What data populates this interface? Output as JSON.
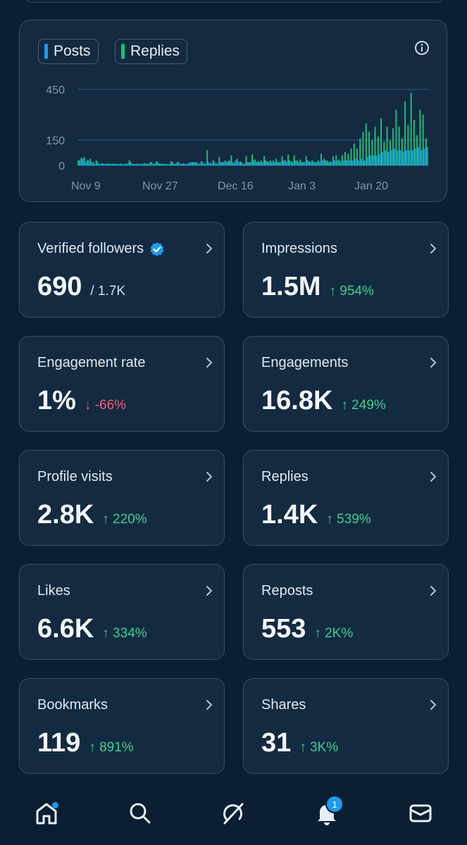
{
  "chart_legend": {
    "posts": {
      "label": "Posts",
      "color": "#1d9bf0"
    },
    "replies": {
      "label": "Replies",
      "color": "#19c37d"
    }
  },
  "chart_data": {
    "type": "bar",
    "x_tick_labels": [
      "Nov 9",
      "Nov 27",
      "Dec 16",
      "Jan 3",
      "Jan 20"
    ],
    "y_tick_labels": [
      "450",
      "150",
      "0"
    ],
    "ylim": [
      0,
      450
    ],
    "grid": true,
    "series": [
      {
        "name": "Posts",
        "values": [
          3,
          4,
          2,
          3,
          2,
          1,
          2,
          1,
          1,
          1,
          1,
          1,
          1,
          1,
          1,
          1,
          1,
          2,
          1,
          1,
          1,
          1,
          1,
          1,
          2,
          1,
          2,
          1,
          1,
          1,
          1,
          2,
          1,
          2,
          1,
          1,
          1,
          2,
          2,
          2,
          1,
          2,
          1,
          2,
          1,
          2,
          1,
          2,
          2,
          2,
          3,
          2,
          3,
          2,
          2,
          1,
          2,
          2,
          3,
          2,
          2,
          2,
          3,
          2,
          2,
          2,
          2,
          2,
          3,
          2,
          3,
          2,
          3,
          2,
          2,
          2,
          3,
          2,
          2,
          2,
          2,
          3,
          3,
          2,
          2,
          3,
          3,
          2,
          3,
          3,
          3,
          3,
          4,
          3,
          4,
          3,
          5,
          6,
          6,
          6,
          7,
          8,
          9,
          8,
          9,
          10,
          9,
          9,
          8,
          9,
          9,
          9,
          10,
          11,
          9,
          10,
          11
        ]
      },
      {
        "name": "Replies",
        "values": [
          30,
          45,
          50,
          30,
          40,
          20,
          30,
          10,
          15,
          10,
          12,
          8,
          10,
          8,
          10,
          5,
          10,
          30,
          10,
          8,
          10,
          8,
          15,
          10,
          20,
          10,
          25,
          12,
          10,
          8,
          6,
          25,
          10,
          20,
          10,
          12,
          8,
          15,
          20,
          18,
          10,
          25,
          10,
          90,
          15,
          30,
          10,
          50,
          20,
          30,
          25,
          60,
          15,
          40,
          25,
          10,
          55,
          20,
          65,
          35,
          25,
          30,
          55,
          25,
          30,
          30,
          40,
          20,
          55,
          30,
          65,
          25,
          60,
          30,
          35,
          20,
          55,
          25,
          30,
          20,
          30,
          70,
          40,
          30,
          25,
          55,
          60,
          35,
          60,
          80,
          70,
          100,
          130,
          100,
          160,
          200,
          250,
          200,
          150,
          230,
          170,
          280,
          140,
          230,
          150,
          220,
          330,
          230,
          160,
          380,
          240,
          430,
          270,
          180,
          330,
          300,
          160
        ]
      }
    ]
  },
  "cards": [
    {
      "label": "Verified followers",
      "value": "690",
      "change": "/ 1.7K",
      "dir": "neutral",
      "verified": true
    },
    {
      "label": "Impressions",
      "value": "1.5M",
      "change": "↑ 954%",
      "dir": "up"
    },
    {
      "label": "Engagement rate",
      "value": "1%",
      "change": "↓ -66%",
      "dir": "down"
    },
    {
      "label": "Engagements",
      "value": "16.8K",
      "change": "↑ 249%",
      "dir": "up"
    },
    {
      "label": "Profile visits",
      "value": "2.8K",
      "change": "↑ 220%",
      "dir": "up"
    },
    {
      "label": "Replies",
      "value": "1.4K",
      "change": "↑ 539%",
      "dir": "up"
    },
    {
      "label": "Likes",
      "value": "6.6K",
      "change": "↑ 334%",
      "dir": "up"
    },
    {
      "label": "Reposts",
      "value": "553",
      "change": "↑ 2K%",
      "dir": "up"
    },
    {
      "label": "Bookmarks",
      "value": "119",
      "change": "↑ 891%",
      "dir": "up"
    },
    {
      "label": "Shares",
      "value": "31",
      "change": "↑ 3K%",
      "dir": "up"
    }
  ],
  "nav": {
    "items": [
      "home-icon",
      "search-icon",
      "grok-icon",
      "bell-icon",
      "mail-icon"
    ],
    "notification_count": "1"
  }
}
